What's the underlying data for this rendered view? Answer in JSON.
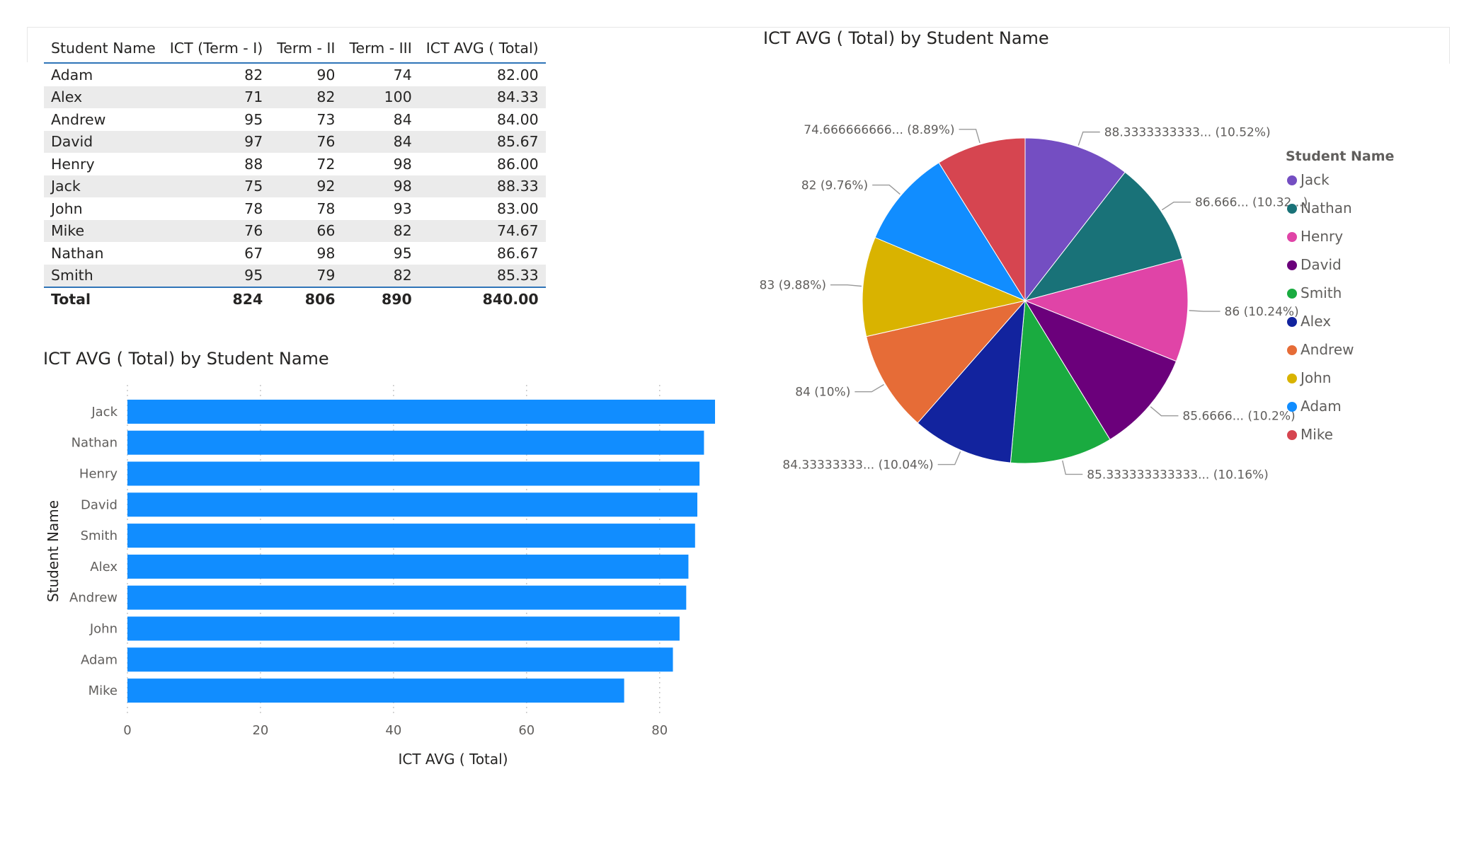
{
  "table": {
    "columns": [
      "Student Name",
      "ICT (Term - I)",
      "Term - II",
      "Term - III",
      "ICT AVG ( Total)"
    ],
    "rows": [
      [
        "Adam",
        "82",
        "90",
        "74",
        "82.00"
      ],
      [
        "Alex",
        "71",
        "82",
        "100",
        "84.33"
      ],
      [
        "Andrew",
        "95",
        "73",
        "84",
        "84.00"
      ],
      [
        "David",
        "97",
        "76",
        "84",
        "85.67"
      ],
      [
        "Henry",
        "88",
        "72",
        "98",
        "86.00"
      ],
      [
        "Jack",
        "75",
        "92",
        "98",
        "88.33"
      ],
      [
        "John",
        "78",
        "78",
        "93",
        "83.00"
      ],
      [
        "Mike",
        "76",
        "66",
        "82",
        "74.67"
      ],
      [
        "Nathan",
        "67",
        "98",
        "95",
        "86.67"
      ],
      [
        "Smith",
        "95",
        "79",
        "82",
        "85.33"
      ]
    ],
    "total": [
      "Total",
      "824",
      "806",
      "890",
      "840.00"
    ]
  },
  "chart_data": [
    {
      "type": "bar",
      "orientation": "horizontal",
      "title": "ICT AVG ( Total) by Student Name",
      "xlabel": "ICT AVG ( Total)",
      "ylabel": "Student Name",
      "categories": [
        "Jack",
        "Nathan",
        "Henry",
        "David",
        "Smith",
        "Alex",
        "Andrew",
        "John",
        "Adam",
        "Mike"
      ],
      "values": [
        88.33,
        86.67,
        86.0,
        85.67,
        85.33,
        84.33,
        84.0,
        83.0,
        82.0,
        74.67
      ],
      "xlim": [
        0,
        88.33
      ],
      "xticks": [
        "0",
        "20",
        "40",
        "60",
        "80"
      ],
      "grid": "vertical dotted",
      "color": "#118dff"
    },
    {
      "type": "pie",
      "title": "ICT AVG ( Total) by Student Name",
      "legend_title": "Student Name",
      "legend_position": "right",
      "slices": [
        {
          "name": "Jack",
          "value": 88.33,
          "label": "88.3333333333... (10.52%)",
          "color": "#744ec2"
        },
        {
          "name": "Nathan",
          "value": 86.67,
          "label": "86.666... (10.32...)",
          "color": "#197278"
        },
        {
          "name": "Henry",
          "value": 86.0,
          "label": "86 (10.24%)",
          "color": "#e044a7"
        },
        {
          "name": "David",
          "value": 85.67,
          "label": "85.6666... (10.2%)",
          "color": "#6b007b"
        },
        {
          "name": "Smith",
          "value": 85.33,
          "label": "85.333333333333... (10.16%)",
          "color": "#1aab40"
        },
        {
          "name": "Alex",
          "value": 84.33,
          "label": "84.33333333... (10.04%)",
          "color": "#12239e"
        },
        {
          "name": "Andrew",
          "value": 84.0,
          "label": "84 (10%)",
          "color": "#e66c37"
        },
        {
          "name": "John",
          "value": 83.0,
          "label": "83 (9.88%)",
          "color": "#d9b300"
        },
        {
          "name": "Adam",
          "value": 82.0,
          "label": "82 (9.76%)",
          "color": "#118dff"
        },
        {
          "name": "Mike",
          "value": 74.67,
          "label": "74.666666666... (8.89%)",
          "color": "#d64550"
        }
      ]
    }
  ]
}
